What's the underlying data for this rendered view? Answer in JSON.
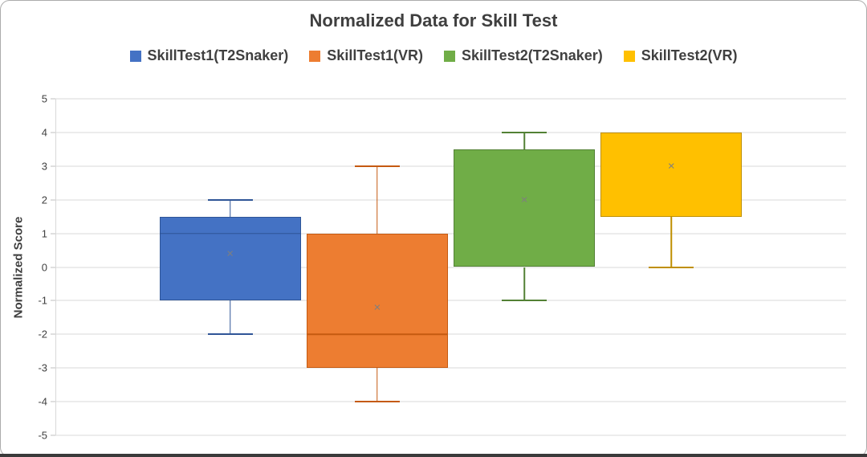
{
  "chart_data": {
    "type": "boxplot",
    "title": "Normalized Data for Skill Test",
    "ylabel": "Normalized Score",
    "ylim": [
      -5,
      5
    ],
    "yticks": [
      5,
      4,
      3,
      2,
      1,
      0,
      -1,
      -2,
      -3,
      -4,
      -5
    ],
    "grid": true,
    "legend_position": "top",
    "mean_marker_symbol": "×",
    "colors": {
      "grid": "#D9D9D9",
      "axis": "#BFBFBF",
      "text": "#404040",
      "mean_marker": "#7F7F7F",
      "chart_border": "#ACACAC"
    },
    "series": [
      {
        "name": "SkillTest1(T2Snaker)",
        "fill": "#4472C4",
        "line": "#2F5597",
        "whisker_low": -2,
        "q1": -1,
        "median": 1,
        "q3": 1.5,
        "whisker_high": 2,
        "mean": 0.4
      },
      {
        "name": "SkillTest1(VR)",
        "fill": "#ED7D31",
        "line": "#C55A11",
        "whisker_low": -4,
        "q1": -3,
        "median": -2,
        "q3": 1,
        "whisker_high": 3,
        "mean": -1.2
      },
      {
        "name": "SkillTest2(T2Snaker)",
        "fill": "#70AD47",
        "line": "#538135",
        "whisker_low": -1,
        "q1": 0,
        "median": 3.5,
        "q3": 3.5,
        "whisker_high": 4,
        "mean": 2
      },
      {
        "name": "SkillTest2(VR)",
        "fill": "#FFC000",
        "line": "#BF8F00",
        "whisker_low": 0,
        "q1": 1.5,
        "median": 4,
        "q3": 4,
        "whisker_high": 4,
        "mean": 3
      }
    ]
  }
}
